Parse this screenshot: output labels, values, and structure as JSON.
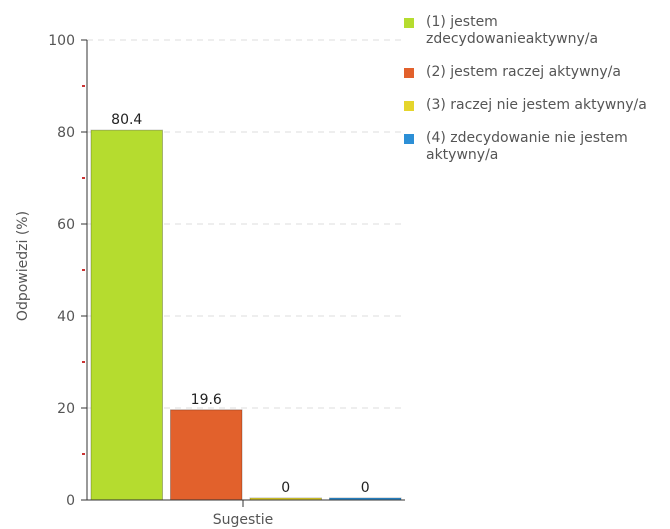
{
  "chart_data": {
    "type": "bar",
    "categories": [
      "(1) jestem zdecydowanieaktywny/a",
      "(2) jestem raczej aktywny/a",
      "(3) raczej nie jestem aktywny/a",
      "(4) zdecydowanie nie jestem aktywny/a"
    ],
    "values": [
      80.4,
      19.6,
      0,
      0
    ],
    "value_labels": [
      "80.4",
      "19.6",
      "0",
      "0"
    ],
    "colors": [
      "#b5dc2f",
      "#e2612c",
      "#e5d52c",
      "#2c8fd6"
    ],
    "xlabel": "Sugestie",
    "ylabel": "Odpowiedzi (%)",
    "ylim": [
      0,
      100
    ],
    "yticks": [
      0,
      20,
      40,
      60,
      80,
      100
    ],
    "ytick_labels": [
      "0",
      "20",
      "40",
      "60",
      "80",
      "100"
    ],
    "grid": true,
    "legend_position": "right",
    "legend": [
      {
        "label": "(1) jestem zdecydowanieaktywny/a",
        "color": "#b5dc2f"
      },
      {
        "label": "(2) jestem raczej aktywny/a",
        "color": "#e2612c"
      },
      {
        "label": "(3) raczej nie jestem aktywny/a",
        "color": "#e5d52c"
      },
      {
        "label": "(4) zdecydowanie nie jestem aktywny/a",
        "color": "#2c8fd6"
      }
    ]
  }
}
